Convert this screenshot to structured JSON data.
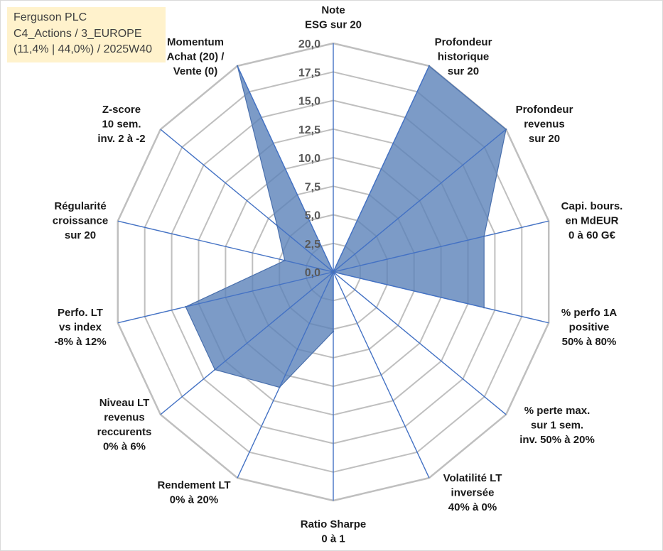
{
  "info_box": {
    "lines": [
      "Ferguson PLC",
      "C4_Actions / 3_EUROPE",
      "(11,4% | 44,0%) / 2025W40"
    ],
    "bg_color": "#FFF2CC"
  },
  "chart_data": {
    "type": "radar",
    "categories": [
      [
        "Note",
        "ESG sur 20"
      ],
      [
        "Profondeur",
        "historique",
        "sur 20"
      ],
      [
        "Profondeur",
        "revenus",
        "sur 20"
      ],
      [
        "Capi. bours.",
        "en MdEUR",
        "0 à 60 G€"
      ],
      [
        "% perfo 1A",
        "positive",
        "50% à 80%"
      ],
      [
        "% perte max.",
        "sur 1 sem.",
        "inv. 50% à 20%"
      ],
      [
        "Volatilité LT",
        "inversée",
        "40% à 0%"
      ],
      [
        "Ratio Sharpe",
        "0 à 1"
      ],
      [
        "Rendement LT",
        "0% à 20%"
      ],
      [
        "Niveau LT",
        "revenus",
        "reccurents",
        "0% à 6%"
      ],
      [
        "Perfo. LT",
        "vs index",
        "-8% à 12%"
      ],
      [
        "Régularité",
        "croissance",
        "sur 20"
      ],
      [
        "Z-score",
        "10 sem.",
        "inv. 2 à -2"
      ],
      [
        "Momentum",
        "Achat (20) /",
        "Vente (0)"
      ]
    ],
    "values": [
      0,
      20,
      20,
      14,
      14,
      0,
      0,
      5.2,
      11.2,
      13.7,
      13.7,
      4.5,
      6.5,
      20
    ],
    "rlim": [
      0,
      20
    ],
    "r_ticks": [
      0,
      2.5,
      5,
      7.5,
      10,
      12.5,
      15,
      17.5,
      20
    ],
    "r_tick_labels": [
      "0,0",
      "2,5",
      "5,0",
      "7,5",
      "10,0",
      "12,5",
      "15,0",
      "17,5",
      "20,0"
    ],
    "grid": true,
    "legend": "none",
    "colors": {
      "series_fill": "#5B82B9",
      "series_line": "#4A70AD",
      "spoke": "#4472C4",
      "grid": "#BFBFBF"
    }
  }
}
